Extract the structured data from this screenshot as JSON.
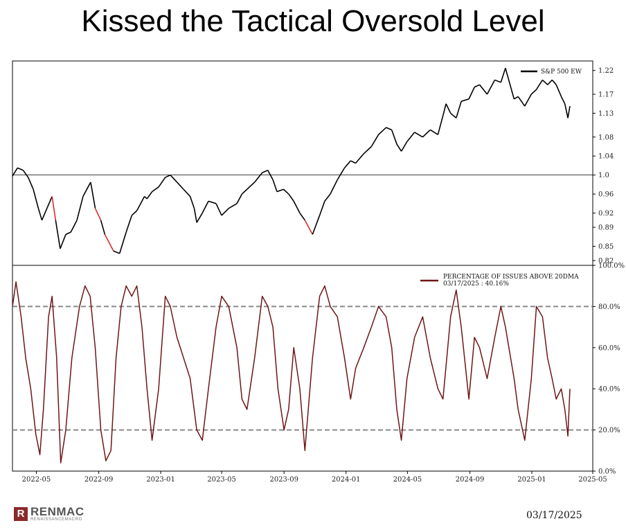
{
  "title": "Kissed the Tactical Oversold Level",
  "date_stamp": "03/17/2025",
  "logo": {
    "main": "RENMAC",
    "sub": "RENAISSANCEMACRO",
    "mark": "R"
  },
  "chart_data": [
    {
      "type": "line",
      "legend": "S&P 500 EW",
      "legend_placement": "top-right",
      "y_ticks": [
        "0.82",
        "0.85",
        "0.89",
        "0.92",
        "0.96",
        "1.0",
        "1.04",
        "1.08",
        "1.13",
        "1.17",
        "1.22"
      ],
      "ylim": [
        0.81,
        1.24
      ],
      "reference_line": 1.0,
      "colors": {
        "line": "#000000",
        "overbought": "#3a8a22",
        "oversold": "#d62c2c"
      },
      "series": [
        {
          "x": [
            "2022-03-15",
            "2022-03-25",
            "2022-04-05",
            "2022-04-15",
            "2022-04-25",
            "2022-05-05",
            "2022-05-12",
            "2022-05-20",
            "2022-06-01",
            "2022-06-08",
            "2022-06-17",
            "2022-06-28",
            "2022-07-08",
            "2022-07-20",
            "2022-08-01",
            "2022-08-16",
            "2022-08-25",
            "2022-09-05",
            "2022-09-13",
            "2022-09-30",
            "2022-10-12",
            "2022-10-25",
            "2022-11-05",
            "2022-11-15",
            "2022-11-30",
            "2022-12-05",
            "2022-12-15",
            "2022-12-28",
            "2023-01-10",
            "2023-01-20",
            "2023-02-02",
            "2023-02-15",
            "2023-02-28",
            "2023-03-08",
            "2023-03-13",
            "2023-03-24",
            "2023-04-05",
            "2023-04-20",
            "2023-05-01",
            "2023-05-15",
            "2023-05-31",
            "2023-06-10",
            "2023-06-20",
            "2023-07-05",
            "2023-07-20",
            "2023-07-31",
            "2023-08-10",
            "2023-08-18",
            "2023-08-31",
            "2023-09-10",
            "2023-09-20",
            "2023-10-02",
            "2023-10-12",
            "2023-10-27",
            "2023-11-10",
            "2023-11-20",
            "2023-12-01",
            "2023-12-15",
            "2023-12-29",
            "2024-01-10",
            "2024-01-20",
            "2024-02-05",
            "2024-02-20",
            "2024-03-05",
            "2024-03-20",
            "2024-03-31",
            "2024-04-10",
            "2024-04-19",
            "2024-04-30",
            "2024-05-15",
            "2024-05-31",
            "2024-06-15",
            "2024-06-30",
            "2024-07-10",
            "2024-07-16",
            "2024-07-25",
            "2024-08-05",
            "2024-08-15",
            "2024-08-30",
            "2024-09-10",
            "2024-09-20",
            "2024-10-05",
            "2024-10-20",
            "2024-11-01",
            "2024-11-10",
            "2024-11-27",
            "2024-12-05",
            "2024-12-18",
            "2024-12-31",
            "2025-01-10",
            "2025-01-22",
            "2025-02-01",
            "2025-02-10",
            "2025-02-18",
            "2025-02-28",
            "2025-03-07",
            "2025-03-13",
            "2025-03-17"
          ],
          "values": [
            0.998,
            1.015,
            1.01,
            0.995,
            0.97,
            0.93,
            0.905,
            0.925,
            0.955,
            0.905,
            0.845,
            0.875,
            0.88,
            0.905,
            0.955,
            0.985,
            0.93,
            0.905,
            0.875,
            0.84,
            0.835,
            0.88,
            0.915,
            0.925,
            0.955,
            0.95,
            0.965,
            0.975,
            0.995,
            1.0,
            0.985,
            0.97,
            0.955,
            0.93,
            0.9,
            0.92,
            0.945,
            0.94,
            0.915,
            0.93,
            0.94,
            0.96,
            0.97,
            0.985,
            1.005,
            1.01,
            0.99,
            0.965,
            0.97,
            0.96,
            0.945,
            0.92,
            0.905,
            0.875,
            0.915,
            0.945,
            0.96,
            0.99,
            1.015,
            1.03,
            1.025,
            1.045,
            1.06,
            1.085,
            1.1,
            1.095,
            1.065,
            1.05,
            1.07,
            1.09,
            1.08,
            1.095,
            1.085,
            1.125,
            1.15,
            1.13,
            1.12,
            1.155,
            1.16,
            1.185,
            1.19,
            1.17,
            1.2,
            1.195,
            1.225,
            1.16,
            1.165,
            1.145,
            1.17,
            1.18,
            1.2,
            1.19,
            1.2,
            1.19,
            1.165,
            1.15,
            1.12,
            1.145
          ]
        }
      ]
    },
    {
      "type": "line",
      "legend": [
        "PERCENTAGE OF ISSUES ABOVE 20DMA",
        "03/17/2025 : 40.16%"
      ],
      "legend_placement": "top-right",
      "y_ticks": [
        "0.0%",
        "20.0%",
        "40.0%",
        "60.0%",
        "80.0%",
        "100.0%"
      ],
      "ylim": [
        0,
        100
      ],
      "reference_lines": [
        20,
        80
      ],
      "x_ticks": [
        "2022-05",
        "2022-09",
        "2023-01",
        "2023-05",
        "2023-09",
        "2024-01",
        "2024-05",
        "2024-09",
        "2025-01",
        "2025-05"
      ],
      "xlim": [
        "2022-03-15",
        "2025-05-01"
      ],
      "colors": {
        "line": "#6e1515",
        "reference": "#888888"
      },
      "series": [
        {
          "x": [
            "2022-03-15",
            "2022-03-22",
            "2022-04-01",
            "2022-04-10",
            "2022-04-20",
            "2022-04-30",
            "2022-05-08",
            "2022-05-15",
            "2022-05-25",
            "2022-06-01",
            "2022-06-10",
            "2022-06-18",
            "2022-06-28",
            "2022-07-10",
            "2022-07-25",
            "2022-08-05",
            "2022-08-15",
            "2022-08-25",
            "2022-09-05",
            "2022-09-15",
            "2022-09-25",
            "2022-10-05",
            "2022-10-15",
            "2022-10-25",
            "2022-11-05",
            "2022-11-15",
            "2022-11-25",
            "2022-12-05",
            "2022-12-15",
            "2022-12-28",
            "2023-01-10",
            "2023-01-20",
            "2023-02-02",
            "2023-02-15",
            "2023-02-28",
            "2023-03-13",
            "2023-03-24",
            "2023-04-05",
            "2023-04-20",
            "2023-05-01",
            "2023-05-15",
            "2023-05-31",
            "2023-06-10",
            "2023-06-20",
            "2023-07-05",
            "2023-07-20",
            "2023-07-31",
            "2023-08-10",
            "2023-08-20",
            "2023-09-01",
            "2023-09-10",
            "2023-09-20",
            "2023-10-02",
            "2023-10-12",
            "2023-10-27",
            "2023-11-10",
            "2023-11-20",
            "2023-12-01",
            "2023-12-15",
            "2023-12-29",
            "2024-01-10",
            "2024-01-20",
            "2024-02-05",
            "2024-02-20",
            "2024-03-05",
            "2024-03-20",
            "2024-03-31",
            "2024-04-10",
            "2024-04-19",
            "2024-04-30",
            "2024-05-15",
            "2024-05-31",
            "2024-06-15",
            "2024-06-30",
            "2024-07-10",
            "2024-07-25",
            "2024-08-05",
            "2024-08-15",
            "2024-08-30",
            "2024-09-10",
            "2024-09-20",
            "2024-10-05",
            "2024-10-20",
            "2024-11-01",
            "2024-11-10",
            "2024-11-27",
            "2024-12-05",
            "2024-12-18",
            "2024-12-31",
            "2025-01-10",
            "2025-01-22",
            "2025-02-01",
            "2025-02-10",
            "2025-02-18",
            "2025-02-28",
            "2025-03-07",
            "2025-03-13",
            "2025-03-17"
          ],
          "values": [
            80,
            92,
            75,
            55,
            40,
            18,
            8,
            30,
            75,
            85,
            55,
            4,
            20,
            55,
            80,
            90,
            85,
            60,
            20,
            5,
            10,
            55,
            80,
            90,
            85,
            90,
            70,
            40,
            15,
            40,
            85,
            80,
            65,
            55,
            45,
            20,
            15,
            40,
            70,
            85,
            80,
            60,
            35,
            30,
            55,
            85,
            80,
            70,
            40,
            20,
            30,
            60,
            40,
            10,
            55,
            85,
            90,
            80,
            75,
            55,
            35,
            50,
            60,
            70,
            80,
            75,
            60,
            30,
            15,
            45,
            65,
            75,
            55,
            40,
            35,
            75,
            88,
            70,
            35,
            65,
            60,
            45,
            65,
            80,
            70,
            45,
            30,
            15,
            45,
            80,
            75,
            55,
            45,
            35,
            40,
            30,
            17,
            40
          ]
        }
      ]
    }
  ]
}
